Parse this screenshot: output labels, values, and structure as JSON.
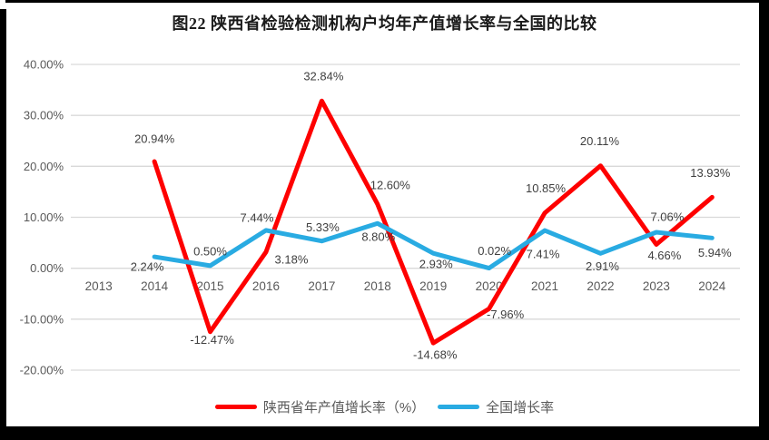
{
  "title": "图22 陕西省检验检测机构户均年产值增长率与全国的比较",
  "chart_data": {
    "type": "line",
    "title": "图22 陕西省检验检测机构户均年产值增长率与全国的比较",
    "categories": [
      "2013",
      "2014",
      "2015",
      "2016",
      "2017",
      "2018",
      "2019",
      "2020",
      "2021",
      "2022",
      "2023",
      "2024"
    ],
    "series": [
      {
        "name": "陕西省年产值增长率（%）",
        "color": "#fe0000",
        "values": [
          null,
          20.94,
          -12.47,
          3.18,
          32.84,
          12.6,
          -14.68,
          -7.96,
          10.85,
          20.11,
          4.66,
          13.93
        ]
      },
      {
        "name": "全国增长率",
        "color": "#29abe2",
        "values": [
          null,
          2.24,
          0.5,
          7.44,
          5.33,
          8.8,
          2.93,
          0.02,
          7.41,
          2.91,
          7.06,
          5.94
        ]
      }
    ],
    "ylim": [
      -20,
      40
    ],
    "y_tick_step": 10,
    "y_ticks": [
      "40.00%",
      "30.00%",
      "20.00%",
      "10.00%",
      "0.00%",
      "-10.00%",
      "-20.00%"
    ],
    "xlabel": "",
    "ylabel": "",
    "grid": "horizontal",
    "data_labels": "all-points, 2 decimals with % suffix",
    "legend_position": "bottom"
  },
  "legend": {
    "items": [
      {
        "label": "陕西省年产值增长率（%）",
        "color": "#fe0000"
      },
      {
        "label": "全国增长率",
        "color": "#29abe2"
      }
    ]
  },
  "colors": {
    "gridline": "#d9d9d9",
    "axis_text": "#595959",
    "data_label_text": "#3f3f3f",
    "page_edge": "#000000",
    "background": "#ffffff"
  }
}
